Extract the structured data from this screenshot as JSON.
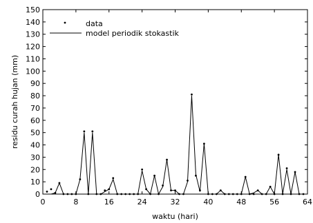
{
  "chart_data": {
    "type": "line",
    "xlabel": "waktu (hari)",
    "ylabel": "residu curah hujan (mm)",
    "xlim": [
      0,
      64
    ],
    "ylim": [
      0,
      150
    ],
    "x_ticks": [
      "0",
      "8",
      "16",
      "24",
      "32",
      "40",
      "48",
      "56",
      "64"
    ],
    "y_ticks": [
      "0",
      "10",
      "20",
      "30",
      "40",
      "50",
      "60",
      "70",
      "80",
      "90",
      "100",
      "110",
      "120",
      "130",
      "140",
      "150"
    ],
    "legend": {
      "placement": "top-left",
      "entries": [
        "data",
        "model periodik stokastik"
      ]
    },
    "grid": false,
    "series": [
      {
        "name": "data",
        "style": "points",
        "x": [
          1,
          2,
          3,
          4,
          5,
          6,
          7,
          8,
          9,
          10,
          11,
          12,
          13,
          14,
          15,
          16,
          17,
          18,
          19,
          20,
          21,
          22,
          23,
          24,
          25,
          26,
          27,
          28,
          29,
          30,
          31,
          32,
          33,
          34,
          35,
          36,
          37,
          38,
          39,
          40,
          41,
          42,
          43,
          44,
          45,
          46,
          47,
          48,
          49,
          50,
          51,
          52,
          53,
          54,
          55,
          56,
          57,
          58,
          59,
          60,
          61,
          62,
          63
        ],
        "y": [
          2,
          4,
          1,
          9,
          0,
          0,
          0,
          0,
          12,
          51,
          0,
          51,
          0,
          0,
          3,
          4,
          13,
          0,
          0,
          0,
          0,
          0,
          0,
          20,
          4,
          0,
          15,
          0,
          7,
          28,
          3,
          3,
          0,
          0,
          11,
          81,
          15,
          3,
          41,
          0,
          0,
          0,
          3,
          0,
          0,
          0,
          0,
          0,
          14,
          0,
          0,
          3,
          0,
          0,
          6,
          0,
          32,
          0,
          21,
          0,
          18,
          0,
          0
        ]
      },
      {
        "name": "model periodik stokastik",
        "style": "line",
        "x": [
          1,
          2,
          3,
          4,
          5,
          6,
          7,
          8,
          9,
          10,
          11,
          12,
          13,
          14,
          15,
          16,
          17,
          18,
          19,
          20,
          21,
          22,
          23,
          24,
          25,
          26,
          27,
          28,
          29,
          30,
          31,
          32,
          33,
          34,
          35,
          36,
          37,
          38,
          39,
          40,
          41,
          42,
          43,
          44,
          45,
          46,
          47,
          48,
          49,
          50,
          51,
          52,
          53,
          54,
          55,
          56,
          57,
          58,
          59,
          60,
          61,
          62,
          63
        ],
        "y": [
          0,
          0,
          1,
          9,
          0,
          0,
          0,
          0,
          12,
          50,
          0,
          50,
          0,
          0,
          2,
          4,
          12,
          0,
          0,
          0,
          0,
          0,
          0,
          19,
          4,
          0,
          15,
          0,
          6,
          28,
          3,
          3,
          0,
          0,
          10,
          80,
          16,
          2,
          41,
          0,
          0,
          0,
          3,
          0,
          0,
          0,
          0,
          0,
          14,
          0,
          1,
          3,
          0,
          0,
          6,
          0,
          32,
          0,
          20,
          0,
          18,
          0,
          0
        ]
      }
    ]
  }
}
